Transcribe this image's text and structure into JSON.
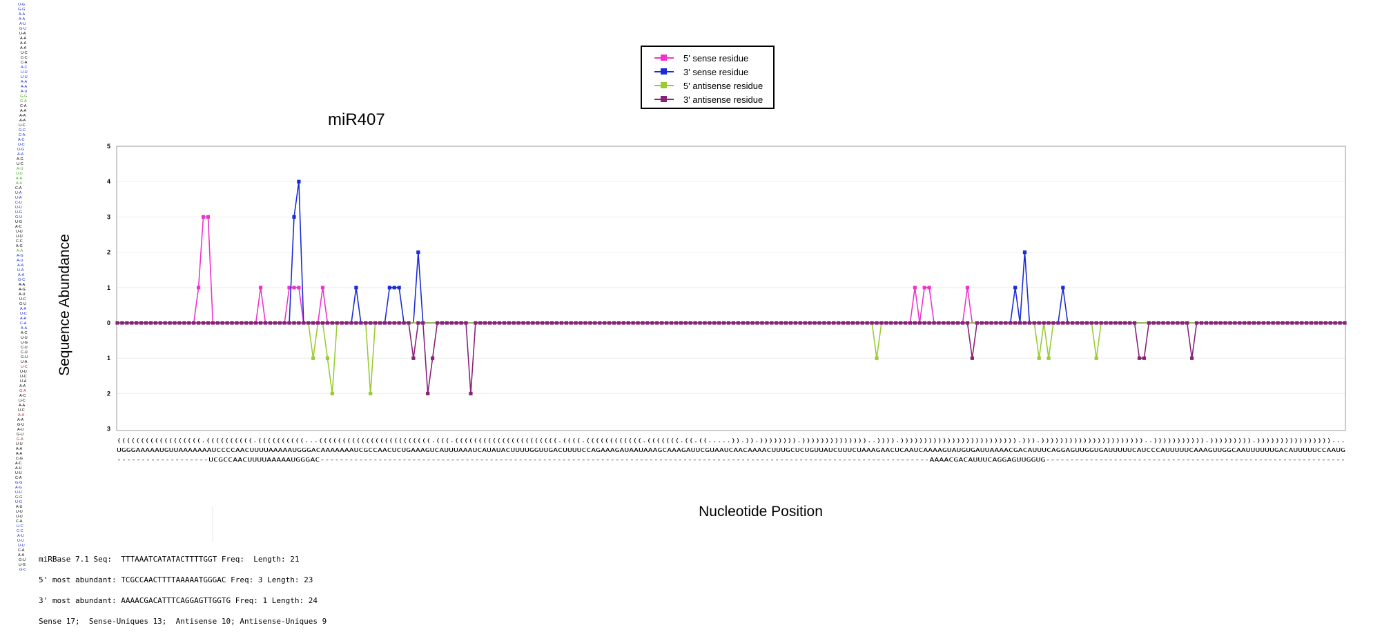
{
  "chart_data": {
    "type": "line",
    "title": "miR407",
    "xlabel": "Nucleotide Position",
    "ylabel": "Sequence Abundance",
    "upper_ticks": [
      "0",
      "1",
      "2",
      "3",
      "4",
      "5"
    ],
    "lower_ticks": [
      "1",
      "2",
      "3"
    ],
    "ylim_upper": [
      0,
      5
    ],
    "ylim_lower": [
      0,
      3
    ],
    "grid": true,
    "legend_position": "top-center",
    "n_positions": 258,
    "series": [
      {
        "name": "5' sense residue",
        "color": "#ee33cc",
        "direction": "up",
        "points": [
          [
            17,
            1
          ],
          [
            18,
            3
          ],
          [
            19,
            3
          ],
          [
            30,
            1
          ],
          [
            36,
            1
          ],
          [
            37,
            1
          ],
          [
            38,
            1
          ],
          [
            43,
            1
          ],
          [
            167,
            1
          ],
          [
            169,
            1
          ],
          [
            170,
            1
          ],
          [
            178,
            1
          ]
        ]
      },
      {
        "name": "3' sense residue",
        "color": "#1b2bd6",
        "direction": "up",
        "points": [
          [
            37,
            3
          ],
          [
            38,
            4
          ],
          [
            50,
            1
          ],
          [
            57,
            1
          ],
          [
            58,
            1
          ],
          [
            59,
            1
          ],
          [
            63,
            2
          ],
          [
            188,
            1
          ],
          [
            190,
            2
          ],
          [
            198,
            1
          ]
        ]
      },
      {
        "name": "5' antisense residue",
        "color": "#99cc33",
        "direction": "down",
        "points": [
          [
            41,
            1
          ],
          [
            44,
            1
          ],
          [
            45,
            2
          ],
          [
            53,
            2
          ],
          [
            159,
            1
          ],
          [
            193,
            1
          ],
          [
            195,
            1
          ],
          [
            205,
            1
          ]
        ]
      },
      {
        "name": "3' antisense residue",
        "color": "#882277",
        "direction": "down",
        "points": [
          [
            62,
            1
          ],
          [
            65,
            2
          ],
          [
            66,
            1
          ],
          [
            74,
            2
          ],
          [
            179,
            1
          ],
          [
            214,
            1
          ],
          [
            215,
            1
          ],
          [
            225,
            1
          ]
        ]
      }
    ],
    "structure": "((((((((((((((((((.((((((((((.((((((((((...((((((((((((((((((((((((.(((.((((((((((((((((((((((.((((.((((((((((((.(((((((.((.((.....)).)).)))))))).))))))))))))))..)))).))))))))))))))))))))))))).))).))))))))))))))))))))))..))))))))))).))))))))).))))))))))))))))...",
    "sequence": "UGGGAAAAAUGUUAAAAAAAUCCCCAACUUUUAAAAAUGGGACAAAAAAAUCGCCAACUCUGAAAGUCAUUUAAAUCAUAUACUUUUGGUUGACUUUUCCAGAAAGAUAAUAAAGCAAAGAUUCGUAAUCAACAAAACUUUGCUCUGUUAUCUUUCUAAAGAACUCAAUCAAAAGUAUGUGAUUAAAACGACAUUUCAGGAGUUGGUGAUUUUUCAUCCCAUUUUUCAAAGUUGGCAAUUUUUUGACAUUUUUCCAAUG",
    "alignment": "-------------------UCGCCAACUUUUAAAAAUGGGAC------------------------------------------------------------------------------------------------------------------------------AAAACGACAUUUCAGGAGUUGGUG--------------------------------------------------------------",
    "info_lines": [
      "miRBase 7.1 Seq:  TTTAAATCATATACTTTTGGT Freq:  Length: 21",
      "5' most abundant: TCGCCAACTTTTAAAAATGGGAC Freq: 3 Length: 23",
      "3' most abundant: AAAACGACATTTCAGGAGTTGGTG Freq: 1 Length: 24",
      "Sense 17;  Sense-Uniques 13;  Antisense 10; Antisense-Uniques 9"
    ]
  }
}
